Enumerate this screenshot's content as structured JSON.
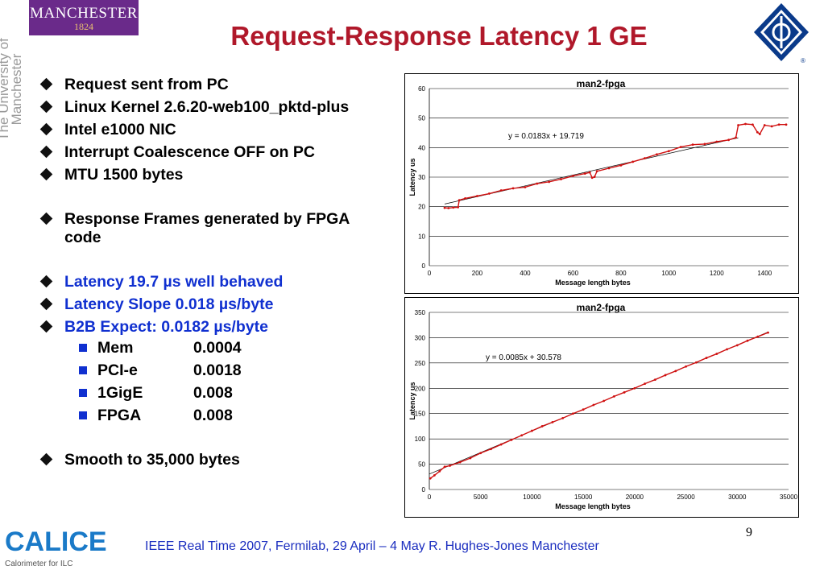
{
  "logo": {
    "name": "MANCHESTER",
    "year": "1824",
    "vertical": "The University of Manchester"
  },
  "title": "Request-Response Latency 1 GE",
  "bullets": [
    {
      "text": "Request sent from PC",
      "color": "#000000"
    },
    {
      "text": "Linux Kernel  2.6.20-web100_pktd-plus",
      "color": "#000000"
    },
    {
      "text": "Intel e1000 NIC",
      "color": "#000000"
    },
    {
      "text": "Interrupt Coalescence OFF on PC",
      "color": "#000000"
    },
    {
      "text": "MTU 1500 bytes",
      "color": "#000000"
    },
    {
      "text": "Response Frames generated by FPGA code",
      "color": "#000000"
    },
    {
      "text": "Latency 19.7 µs well behaved",
      "color": "#1030d0"
    },
    {
      "text": "Latency Slope  0.018 µs/byte",
      "color": "#1030d0"
    },
    {
      "text": "B2B Expect:     0.0182 µs/byte",
      "color": "#1030d0"
    }
  ],
  "subitems": [
    {
      "label": "Mem",
      "value": "0.0004"
    },
    {
      "label": "PCI-e",
      "value": "0.0018"
    },
    {
      "label": "1GigE",
      "value": "0.008"
    },
    {
      "label": "FPGA",
      "value": "0.008"
    }
  ],
  "last_bullet": "Smooth to 35,000 bytes",
  "chart_data": [
    {
      "type": "scatter",
      "title": "man2-fpga",
      "xlabel": "Message length bytes",
      "ylabel": "Latency us",
      "xlim": [
        0,
        1500
      ],
      "ylim": [
        0,
        60
      ],
      "xticks": [
        0,
        200,
        400,
        600,
        800,
        1000,
        1200,
        1400
      ],
      "yticks": [
        0,
        10,
        20,
        30,
        40,
        50,
        60
      ],
      "annotation": "y = 0.0183x + 19.719",
      "trendline": {
        "slope": 0.0183,
        "intercept": 19.719,
        "x_range": [
          64,
          1290
        ]
      },
      "series": [
        {
          "color": "#d01010",
          "points": [
            [
              64,
              19.6
            ],
            [
              80,
              19.5
            ],
            [
              100,
              19.7
            ],
            [
              120,
              19.8
            ],
            [
              125,
              22.2
            ],
            [
              150,
              22.8
            ],
            [
              200,
              23.6
            ],
            [
              250,
              24.4
            ],
            [
              300,
              25.5
            ],
            [
              350,
              26.2
            ],
            [
              400,
              26.6
            ],
            [
              450,
              27.8
            ],
            [
              500,
              28.4
            ],
            [
              550,
              29.3
            ],
            [
              600,
              30.4
            ],
            [
              650,
              31.2
            ],
            [
              670,
              31.6
            ],
            [
              680,
              29.8
            ],
            [
              690,
              30.1
            ],
            [
              700,
              32.0
            ],
            [
              750,
              33.0
            ],
            [
              800,
              34.0
            ],
            [
              850,
              35.2
            ],
            [
              900,
              36.4
            ],
            [
              950,
              37.7
            ],
            [
              1000,
              38.8
            ],
            [
              1050,
              40.2
            ],
            [
              1100,
              41.0
            ],
            [
              1150,
              41.2
            ],
            [
              1200,
              42.0
            ],
            [
              1250,
              42.6
            ],
            [
              1280,
              43.4
            ],
            [
              1290,
              47.6
            ],
            [
              1320,
              48.0
            ],
            [
              1350,
              47.8
            ],
            [
              1370,
              45.2
            ],
            [
              1380,
              44.6
            ],
            [
              1400,
              47.6
            ],
            [
              1430,
              47.2
            ],
            [
              1460,
              47.8
            ],
            [
              1490,
              47.8
            ]
          ]
        }
      ]
    },
    {
      "type": "scatter",
      "title": "man2-fpga",
      "xlabel": "Message length bytes",
      "ylabel": "Latency us",
      "xlim": [
        0,
        35000
      ],
      "ylim": [
        0,
        350
      ],
      "xticks": [
        0,
        5000,
        10000,
        15000,
        20000,
        25000,
        30000,
        35000
      ],
      "yticks": [
        0,
        50,
        100,
        150,
        200,
        250,
        300,
        350
      ],
      "annotation": "y = 0.0085x + 30.578",
      "trendline": {
        "slope": 0.0085,
        "intercept": 30.578,
        "x_range": [
          0,
          33000
        ]
      },
      "series": [
        {
          "color": "#d01010",
          "points": [
            [
              100,
              22
            ],
            [
              500,
              28
            ],
            [
              1000,
              36
            ],
            [
              1500,
              45
            ],
            [
              2000,
              47
            ],
            [
              3000,
              54
            ],
            [
              4000,
              62
            ],
            [
              5000,
              72
            ],
            [
              6000,
              80
            ],
            [
              7000,
              89
            ],
            [
              8000,
              98
            ],
            [
              9000,
              107
            ],
            [
              10000,
              116
            ],
            [
              11000,
              125
            ],
            [
              12000,
              133
            ],
            [
              13000,
              141
            ],
            [
              14000,
              150
            ],
            [
              15000,
              158
            ],
            [
              16000,
              167
            ],
            [
              17000,
              175
            ],
            [
              18000,
              184
            ],
            [
              19000,
              192
            ],
            [
              20000,
              200
            ],
            [
              21000,
              209
            ],
            [
              22000,
              217
            ],
            [
              23000,
              226
            ],
            [
              24000,
              234
            ],
            [
              25000,
              243
            ],
            [
              26000,
              251
            ],
            [
              27000,
              260
            ],
            [
              28000,
              268
            ],
            [
              29000,
              277
            ],
            [
              30000,
              285
            ],
            [
              31000,
              294
            ],
            [
              32000,
              302
            ],
            [
              33000,
              310
            ]
          ]
        }
      ]
    }
  ],
  "footer": "IEEE Real Time 2007, Fermilab, 29 April – 4 May  R. Hughes-Jones  Manchester",
  "page_number": "9",
  "calice": {
    "name": "CALICE",
    "subtitle": "Calorimeter for ILC"
  }
}
